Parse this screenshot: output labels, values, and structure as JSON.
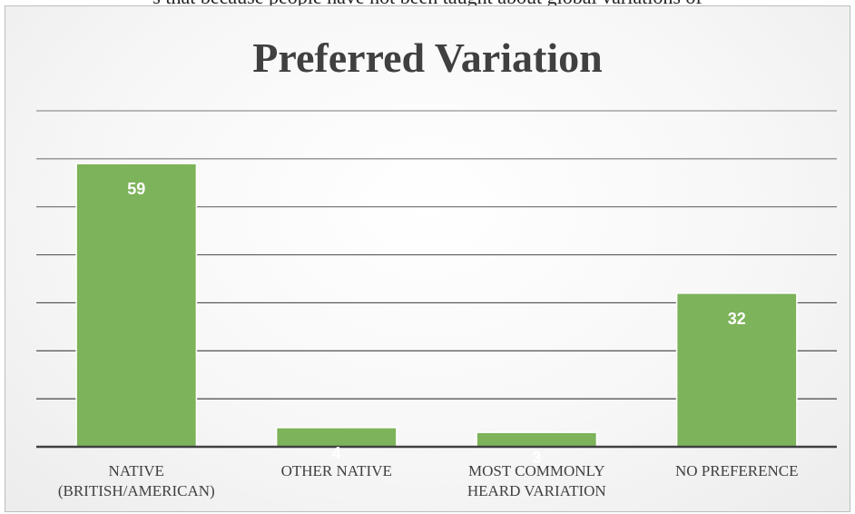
{
  "page": {
    "top_text": "s that because people have not been taught about global variations of"
  },
  "colors": {
    "bar": "#7db35a",
    "bar_edge": "#6fa64c",
    "gridline": "#5a5a5a",
    "axis": "#404040"
  },
  "chart_data": {
    "type": "bar",
    "title": "Preferred Variation",
    "categories": [
      [
        "NATIVE",
        "(BRITISH/AMERICAN)"
      ],
      [
        "OTHER NATIVE"
      ],
      [
        "MOST COMMONLY",
        "HEARD VARIATION"
      ],
      [
        "NO PREFERENCE"
      ]
    ],
    "values": [
      59,
      4,
      3,
      32
    ],
    "data_labels": [
      "59",
      "4",
      "3",
      "32"
    ],
    "ylim": [
      0,
      70
    ],
    "ytick_step": 10,
    "y_tick_labels_shown": false,
    "grid": true,
    "legend": "none",
    "xlabel": "",
    "ylabel": ""
  }
}
